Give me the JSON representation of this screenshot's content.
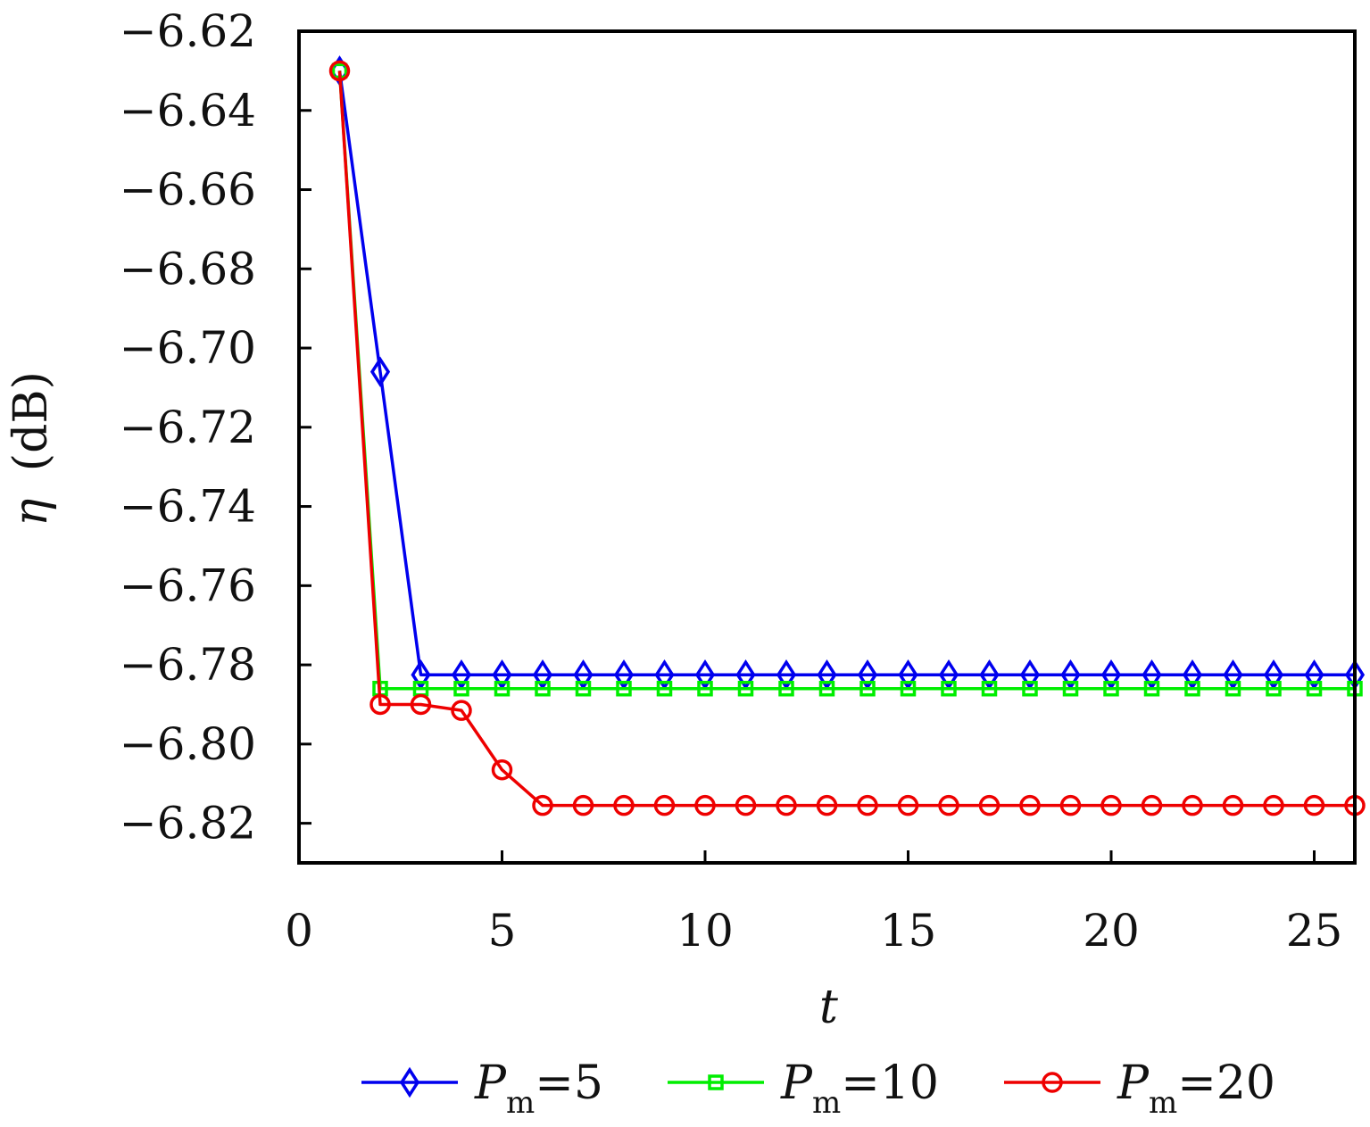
{
  "chart_data": {
    "type": "line",
    "title": "",
    "xlabel": "t",
    "ylabel_symbol": "η",
    "ylabel_unit": "(dB)",
    "xlim": [
      0,
      26
    ],
    "ylim": [
      -6.83,
      -6.62
    ],
    "xticks": [
      0,
      5,
      10,
      15,
      20,
      25
    ],
    "xtick_labels": [
      "0",
      "5",
      "10",
      "15",
      "20",
      "25"
    ],
    "yticks": [
      -6.62,
      -6.64,
      -6.66,
      -6.68,
      -6.7,
      -6.72,
      -6.74,
      -6.76,
      -6.78,
      -6.8,
      -6.82
    ],
    "ytick_labels": [
      "−6.62",
      "−6.64",
      "−6.66",
      "−6.68",
      "−6.70",
      "−6.72",
      "−6.74",
      "−6.76",
      "−6.78",
      "−6.80",
      "−6.82"
    ],
    "grid": false,
    "legend_position": "bottom",
    "x": [
      1,
      2,
      3,
      4,
      5,
      6,
      7,
      8,
      9,
      10,
      11,
      12,
      13,
      14,
      15,
      16,
      17,
      18,
      19,
      20,
      21,
      22,
      23,
      24,
      25,
      26
    ],
    "series": [
      {
        "legend_sym": "P",
        "legend_sub": "m",
        "legend_rest": "=5",
        "color": "#0000ee",
        "marker": "diamond",
        "values": [
          -6.63,
          -6.706,
          -6.7825,
          -6.7825,
          -6.7825,
          -6.7825,
          -6.7825,
          -6.7825,
          -6.7825,
          -6.7825,
          -6.7825,
          -6.7825,
          -6.7825,
          -6.7825,
          -6.7825,
          -6.7825,
          -6.7825,
          -6.7825,
          -6.7825,
          -6.7825,
          -6.7825,
          -6.7825,
          -6.7825,
          -6.7825,
          -6.7825,
          -6.7825
        ]
      },
      {
        "legend_sym": "P",
        "legend_sub": "m",
        "legend_rest": "=10",
        "color": "#00ee00",
        "marker": "square",
        "values": [
          -6.63,
          -6.786,
          -6.786,
          -6.786,
          -6.786,
          -6.786,
          -6.786,
          -6.786,
          -6.786,
          -6.786,
          -6.786,
          -6.786,
          -6.786,
          -6.786,
          -6.786,
          -6.786,
          -6.786,
          -6.786,
          -6.786,
          -6.786,
          -6.786,
          -6.786,
          -6.786,
          -6.786,
          -6.786,
          -6.786
        ]
      },
      {
        "legend_sym": "P",
        "legend_sub": "m",
        "legend_rest": "=20",
        "color": "#ee0000",
        "marker": "circle",
        "values": [
          -6.63,
          -6.79,
          -6.79,
          -6.7915,
          -6.8065,
          -6.8155,
          -6.8155,
          -6.8155,
          -6.8155,
          -6.8155,
          -6.8155,
          -6.8155,
          -6.8155,
          -6.8155,
          -6.8155,
          -6.8155,
          -6.8155,
          -6.8155,
          -6.8155,
          -6.8155,
          -6.8155,
          -6.8155,
          -6.8155,
          -6.8155,
          -6.8155,
          -6.8155
        ]
      }
    ]
  }
}
